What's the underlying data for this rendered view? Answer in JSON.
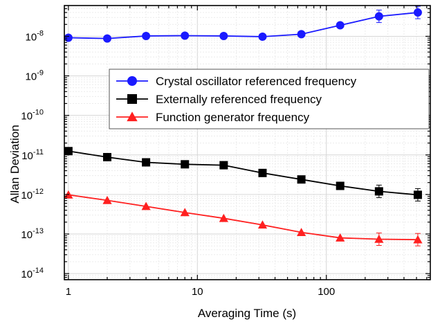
{
  "chart_data": {
    "type": "line",
    "xlabel": "Averaging Time (s)",
    "ylabel": "Allan Deviation",
    "x_scale": "log",
    "y_scale": "log",
    "xlim": [
      0.93,
      640
    ],
    "ylim": [
      7e-15,
      6e-08
    ],
    "x_ticks": [
      {
        "value": 1,
        "label": "1"
      },
      {
        "value": 10,
        "label": "10"
      },
      {
        "value": 100,
        "label": "100"
      }
    ],
    "y_ticks": [
      {
        "exp": -14,
        "label": "10",
        "sup": "-14"
      },
      {
        "exp": -13,
        "label": "10",
        "sup": "-13"
      },
      {
        "exp": -12,
        "label": "10",
        "sup": "-12"
      },
      {
        "exp": -11,
        "label": "10",
        "sup": "-11"
      },
      {
        "exp": -10,
        "label": "10",
        "sup": "-10"
      },
      {
        "exp": -9,
        "label": "10",
        "sup": "-9"
      },
      {
        "exp": -8,
        "label": "10",
        "sup": "-8"
      }
    ],
    "grid": true,
    "legend_position": "upper-right (inside plot)",
    "x": [
      1,
      2,
      4,
      8,
      16,
      32,
      64,
      128,
      256,
      512
    ],
    "series": [
      {
        "name": "Crystal oscillator referenced frequency",
        "color": "#1a1aff",
        "marker": "circle",
        "values": [
          9.2e-09,
          8.8e-09,
          1.02e-08,
          1.04e-08,
          1.02e-08,
          9.8e-09,
          1.13e-08,
          1.9e-08,
          3.2e-08,
          4e-08
        ]
      },
      {
        "name": "Externally referenced frequency",
        "color": "#000000",
        "marker": "square",
        "values": [
          1.25e-11,
          8.8e-12,
          6.5e-12,
          5.8e-12,
          5.5e-12,
          3.5e-12,
          2.4e-12,
          1.65e-12,
          1.2e-12,
          9.8e-13
        ]
      },
      {
        "name": "Function generator frequency",
        "color": "#ff2020",
        "marker": "triangle",
        "values": [
          9.8e-13,
          7.1e-13,
          5e-13,
          3.5e-13,
          2.5e-13,
          1.7e-13,
          1.1e-13,
          8e-14,
          7.4e-14,
          7.2e-14
        ]
      }
    ]
  }
}
